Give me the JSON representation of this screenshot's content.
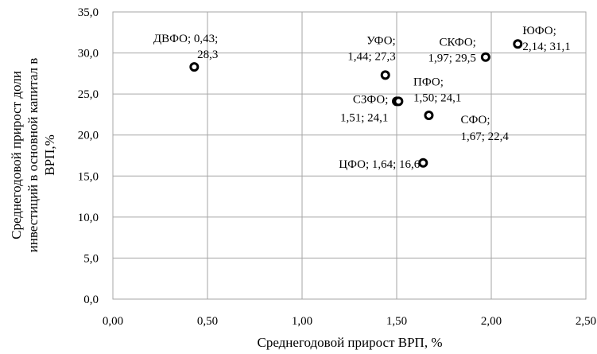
{
  "chart_data": {
    "type": "scatter",
    "xlabel": "Среднегодовой прирост ВРП, %",
    "ylabel_lines": [
      "Среднегодовой прирост доли",
      "инвестиций  в основной капитал в",
      "ВРП,%"
    ],
    "xlim": [
      0,
      2.5
    ],
    "ylim": [
      0,
      35
    ],
    "x_ticks": [
      {
        "value": 0.0,
        "label": "0,00"
      },
      {
        "value": 0.5,
        "label": "0,50"
      },
      {
        "value": 1.0,
        "label": "1,00"
      },
      {
        "value": 1.5,
        "label": "1,50"
      },
      {
        "value": 2.0,
        "label": "2,00"
      },
      {
        "value": 2.5,
        "label": "2,50"
      }
    ],
    "y_ticks": [
      {
        "value": 0,
        "label": "0,0"
      },
      {
        "value": 5,
        "label": "5,0"
      },
      {
        "value": 10,
        "label": "10,0"
      },
      {
        "value": 15,
        "label": "15,0"
      },
      {
        "value": 20,
        "label": "20,0"
      },
      {
        "value": 25,
        "label": "25,0"
      },
      {
        "value": 30,
        "label": "30,0"
      },
      {
        "value": 35,
        "label": "35,0"
      }
    ],
    "grid": true,
    "marker_fill": "#ffffff",
    "marker_stroke": "#000000",
    "points": [
      {
        "x": 0.43,
        "y": 28.3,
        "label_lines": [
          "ДВФО; 0,43;",
          "28,3"
        ]
      },
      {
        "x": 1.44,
        "y": 27.3,
        "label_lines": [
          "УФО;",
          "1,44; 27,3"
        ]
      },
      {
        "x": 1.97,
        "y": 29.5,
        "label_lines": [
          "СКФО;",
          "1,97; 29,5"
        ]
      },
      {
        "x": 2.14,
        "y": 31.1,
        "label_lines": [
          "ЮФО;",
          "2,14; 31,1"
        ]
      },
      {
        "x": 1.5,
        "y": 24.1,
        "label_lines": [
          "ПФО;",
          "1,50; 24,1"
        ]
      },
      {
        "x": 1.51,
        "y": 24.1,
        "label_lines": [
          "СЗФО;",
          "1,51; 24,1"
        ]
      },
      {
        "x": 1.67,
        "y": 22.4,
        "label_lines": [
          "СФО;",
          "1,67; 22,4"
        ]
      },
      {
        "x": 1.64,
        "y": 16.6,
        "label_lines": [
          "ЦФО; 1,64; 16,6"
        ]
      }
    ]
  }
}
